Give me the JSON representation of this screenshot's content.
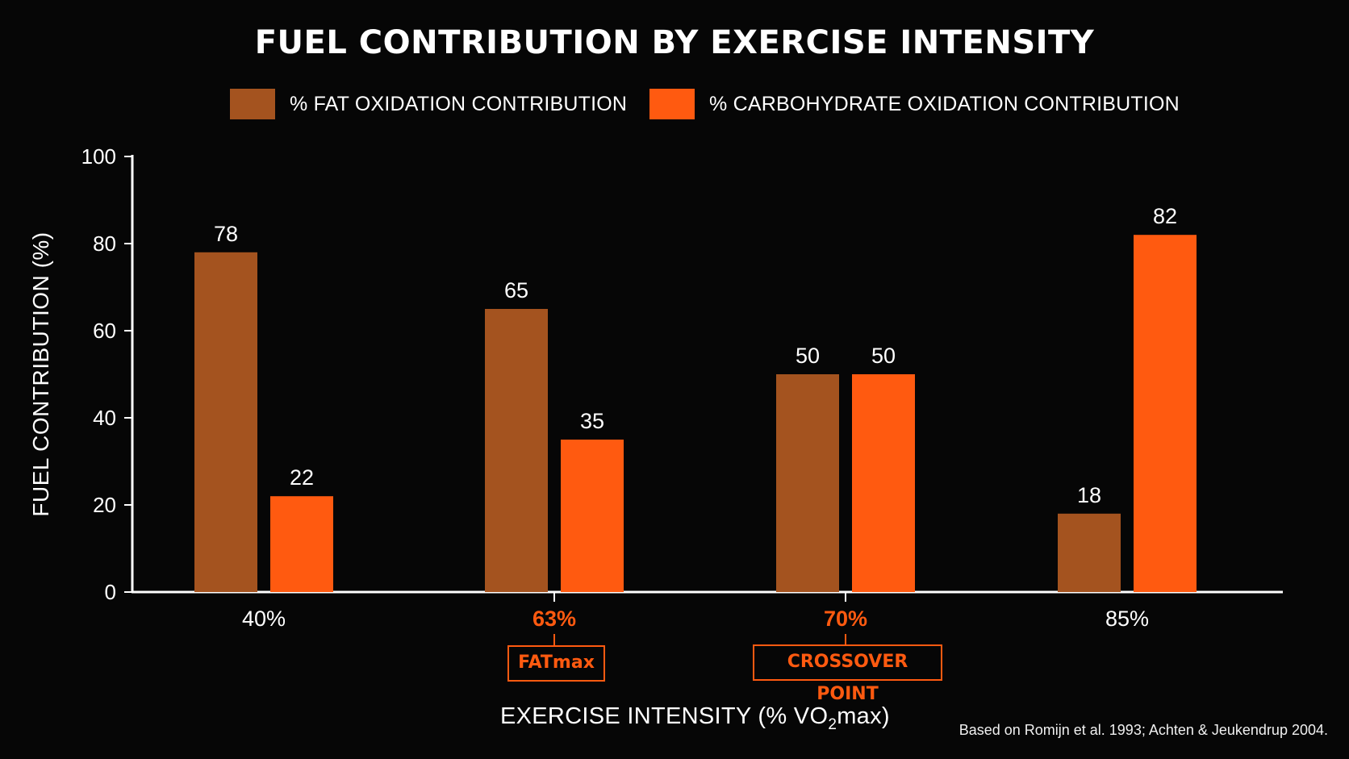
{
  "chart_data": {
    "type": "bar",
    "title": "FUEL CONTRIBUTION BY EXERCISE INTENSITY",
    "categories": [
      "40%",
      "63%",
      "70%",
      "85%"
    ],
    "series": [
      {
        "name": "% FAT OXIDATION CONTRIBUTION",
        "values": [
          78,
          65,
          50,
          18
        ],
        "color": "#a4531f"
      },
      {
        "name": "% CARBOHYDRATE OXIDATION CONTRIBUTION",
        "values": [
          22,
          35,
          50,
          82
        ],
        "color": "#ff5a10"
      }
    ],
    "ylabel": "FUEL CONTRIBUTION (%)",
    "xlabel": {
      "main": "EXERCISE INTENSITY (% VO",
      "subscript": "2",
      "suffix": "max)"
    },
    "ylim": [
      0,
      100
    ],
    "yticks": [
      "0",
      "20",
      "40",
      "60",
      "80",
      "100"
    ],
    "highlighted_categories": [
      "63%",
      "70%"
    ],
    "highlight_color": "#ff5a10",
    "annotations": [
      {
        "category": "63%",
        "label": "FATmax"
      },
      {
        "category": "70%",
        "label": "CROSSOVER POINT"
      }
    ],
    "grid": false,
    "legend_position": "top"
  },
  "source_note": "Based on Romijn et al. 1993; Achten & Jeukendrup 2004."
}
